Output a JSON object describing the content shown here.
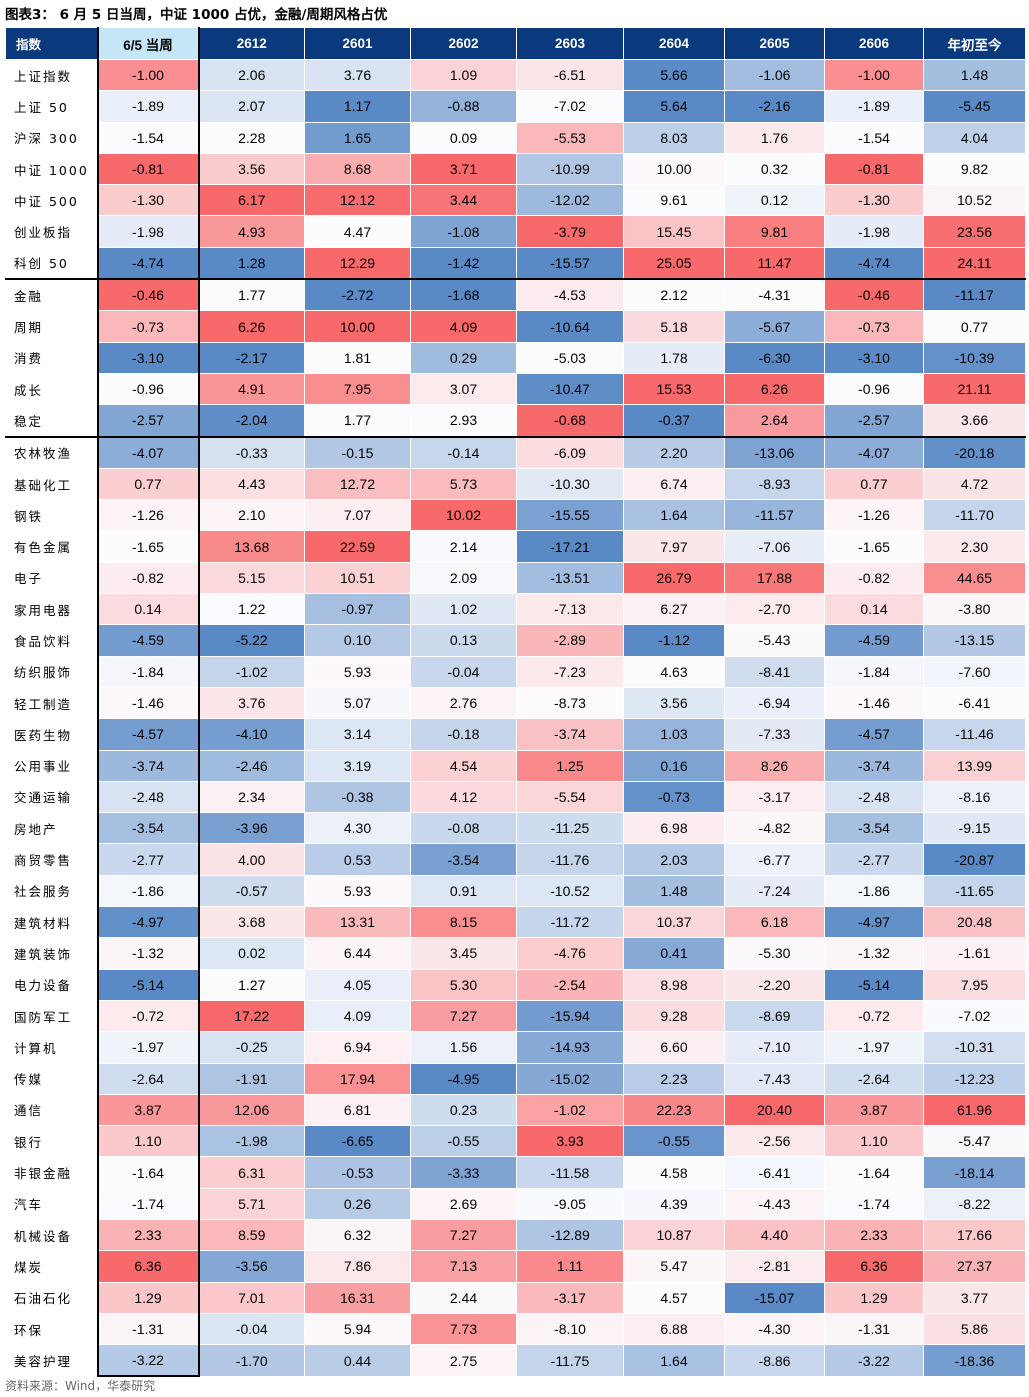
{
  "title": "图表3：  6 月 5 日当周，中证 1000 占优，金融/周期风格占优",
  "table": {
    "header": [
      "指数",
      "6/5 当周",
      "2612",
      "2601",
      "2602",
      "2603",
      "2604",
      "2605",
      "2606",
      "年初至今"
    ],
    "sections": [
      {
        "rows": [
          [
            "上证指数",
            "-1.00",
            "2.06",
            "3.76",
            "1.09",
            "-6.51",
            "5.66",
            "-1.06",
            "-1.00",
            "1.48"
          ],
          [
            "上证 50",
            "-1.89",
            "2.07",
            "1.17",
            "-0.88",
            "-7.02",
            "5.64",
            "-2.16",
            "-1.89",
            "-5.45"
          ],
          [
            "沪深 300",
            "-1.54",
            "2.28",
            "1.65",
            "0.09",
            "-5.53",
            "8.03",
            "1.76",
            "-1.54",
            "4.04"
          ],
          [
            "中证 1000",
            "-0.81",
            "3.56",
            "8.68",
            "3.71",
            "-10.99",
            "10.00",
            "0.32",
            "-0.81",
            "9.82"
          ],
          [
            "中证 500",
            "-1.30",
            "6.17",
            "12.12",
            "3.44",
            "-12.02",
            "9.61",
            "0.12",
            "-1.30",
            "10.52"
          ],
          [
            "创业板指",
            "-1.98",
            "4.93",
            "4.47",
            "-1.08",
            "-3.79",
            "15.45",
            "9.81",
            "-1.98",
            "23.56"
          ],
          [
            "科创 50",
            "-4.74",
            "1.28",
            "12.29",
            "-1.42",
            "-15.57",
            "25.05",
            "11.47",
            "-4.74",
            "24.11"
          ]
        ]
      },
      {
        "rows": [
          [
            "金融",
            "-0.46",
            "1.77",
            "-2.72",
            "-1.68",
            "-4.53",
            "2.12",
            "-4.31",
            "-0.46",
            "-11.17"
          ],
          [
            "周期",
            "-0.73",
            "6.26",
            "10.00",
            "4.09",
            "-10.64",
            "5.18",
            "-5.67",
            "-0.73",
            "0.77"
          ],
          [
            "消费",
            "-3.10",
            "-2.17",
            "1.81",
            "0.29",
            "-5.03",
            "1.78",
            "-6.30",
            "-3.10",
            "-10.39"
          ],
          [
            "成长",
            "-0.96",
            "4.91",
            "7.95",
            "3.07",
            "-10.47",
            "15.53",
            "6.26",
            "-0.96",
            "21.11"
          ],
          [
            "稳定",
            "-2.57",
            "-2.04",
            "1.77",
            "2.93",
            "-0.68",
            "-0.37",
            "2.64",
            "-2.57",
            "3.66"
          ]
        ]
      },
      {
        "rows": [
          [
            "农林牧渔",
            "-4.07",
            "-0.33",
            "-0.15",
            "-0.14",
            "-6.09",
            "2.20",
            "-13.06",
            "-4.07",
            "-20.18"
          ],
          [
            "基础化工",
            "0.77",
            "4.43",
            "12.72",
            "5.73",
            "-10.30",
            "6.74",
            "-8.93",
            "0.77",
            "4.72"
          ],
          [
            "钢铁",
            "-1.26",
            "2.10",
            "7.07",
            "10.02",
            "-15.55",
            "1.64",
            "-11.57",
            "-1.26",
            "-11.70"
          ],
          [
            "有色金属",
            "-1.65",
            "13.68",
            "22.59",
            "2.14",
            "-17.21",
            "7.97",
            "-7.06",
            "-1.65",
            "2.30"
          ],
          [
            "电子",
            "-0.82",
            "5.15",
            "10.51",
            "2.09",
            "-13.51",
            "26.79",
            "17.88",
            "-0.82",
            "44.65"
          ],
          [
            "家用电器",
            "0.14",
            "1.22",
            "-0.97",
            "1.02",
            "-7.13",
            "6.27",
            "-2.70",
            "0.14",
            "-3.80"
          ],
          [
            "食品饮料",
            "-4.59",
            "-5.22",
            "0.10",
            "0.13",
            "-2.89",
            "-1.12",
            "-5.43",
            "-4.59",
            "-13.15"
          ],
          [
            "纺织服饰",
            "-1.84",
            "-1.02",
            "5.93",
            "-0.04",
            "-7.23",
            "4.63",
            "-8.41",
            "-1.84",
            "-7.60"
          ],
          [
            "轻工制造",
            "-1.46",
            "3.76",
            "5.07",
            "2.76",
            "-8.73",
            "3.56",
            "-6.94",
            "-1.46",
            "-6.41"
          ],
          [
            "医药生物",
            "-4.57",
            "-4.10",
            "3.14",
            "-0.18",
            "-3.74",
            "1.03",
            "-7.33",
            "-4.57",
            "-11.46"
          ],
          [
            "公用事业",
            "-3.74",
            "-2.46",
            "3.19",
            "4.54",
            "1.25",
            "0.16",
            "8.26",
            "-3.74",
            "13.99"
          ],
          [
            "交通运输",
            "-2.48",
            "2.34",
            "-0.38",
            "4.12",
            "-5.54",
            "-0.73",
            "-3.17",
            "-2.48",
            "-8.16"
          ],
          [
            "房地产",
            "-3.54",
            "-3.96",
            "4.30",
            "-0.08",
            "-11.25",
            "6.98",
            "-4.82",
            "-3.54",
            "-9.15"
          ],
          [
            "商贸零售",
            "-2.77",
            "4.00",
            "0.53",
            "-3.54",
            "-11.76",
            "2.03",
            "-6.77",
            "-2.77",
            "-20.87"
          ],
          [
            "社会服务",
            "-1.86",
            "-0.57",
            "5.93",
            "0.91",
            "-10.52",
            "1.48",
            "-7.24",
            "-1.86",
            "-11.65"
          ],
          [
            "建筑材料",
            "-4.97",
            "3.68",
            "13.31",
            "8.15",
            "-11.72",
            "10.37",
            "6.18",
            "-4.97",
            "20.48"
          ],
          [
            "建筑装饰",
            "-1.32",
            "0.02",
            "6.44",
            "3.45",
            "-4.76",
            "0.41",
            "-5.30",
            "-1.32",
            "-1.61"
          ],
          [
            "电力设备",
            "-5.14",
            "1.27",
            "4.05",
            "5.30",
            "-2.54",
            "8.98",
            "-2.20",
            "-5.14",
            "7.95"
          ],
          [
            "国防军工",
            "-0.72",
            "17.22",
            "4.09",
            "7.27",
            "-15.94",
            "9.28",
            "-8.69",
            "-0.72",
            "-7.02"
          ],
          [
            "计算机",
            "-1.97",
            "-0.25",
            "6.94",
            "1.56",
            "-14.93",
            "6.60",
            "-7.10",
            "-1.97",
            "-10.31"
          ],
          [
            "传媒",
            "-2.64",
            "-1.91",
            "17.94",
            "-4.95",
            "-15.02",
            "2.23",
            "-7.43",
            "-2.64",
            "-12.23"
          ],
          [
            "通信",
            "3.87",
            "12.06",
            "6.81",
            "0.23",
            "-1.02",
            "22.23",
            "20.40",
            "3.87",
            "61.96"
          ],
          [
            "银行",
            "1.10",
            "-1.98",
            "-6.65",
            "-0.55",
            "3.93",
            "-0.55",
            "-2.56",
            "1.10",
            "-5.47"
          ],
          [
            "非银金融",
            "-1.64",
            "6.31",
            "-0.53",
            "-3.33",
            "-11.58",
            "4.58",
            "-6.41",
            "-1.64",
            "-18.14"
          ],
          [
            "汽车",
            "-1.74",
            "5.71",
            "0.26",
            "2.69",
            "-9.05",
            "4.39",
            "-4.43",
            "-1.74",
            "-8.22"
          ],
          [
            "机械设备",
            "2.33",
            "8.59",
            "6.32",
            "7.27",
            "-12.89",
            "10.87",
            "4.40",
            "2.33",
            "17.66"
          ],
          [
            "煤炭",
            "6.36",
            "-3.56",
            "7.86",
            "7.13",
            "1.11",
            "5.47",
            "-2.81",
            "6.36",
            "27.37"
          ],
          [
            "石油石化",
            "1.29",
            "7.01",
            "16.31",
            "2.44",
            "-3.17",
            "4.57",
            "-15.07",
            "1.29",
            "3.77"
          ],
          [
            "环保",
            "-1.31",
            "-0.04",
            "5.94",
            "7.73",
            "-8.10",
            "6.88",
            "-4.30",
            "-1.31",
            "5.86"
          ],
          [
            "美容护理",
            "-3.22",
            "-1.70",
            "0.44",
            "2.75",
            "-11.75",
            "1.64",
            "-8.86",
            "-3.22",
            "-18.36"
          ]
        ]
      }
    ]
  },
  "source": "资料来源：Wind，华泰研究"
}
